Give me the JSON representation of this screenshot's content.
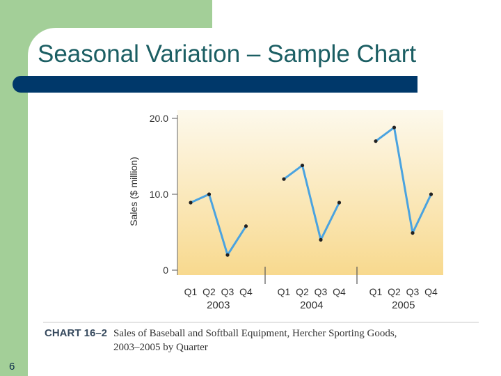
{
  "slide": {
    "title": "Seasonal Variation – Sample Chart",
    "number": "6",
    "colors": {
      "green": "#a3cf98",
      "navy": "#00386a",
      "title": "#1b5e63",
      "line": "#4aa3e0",
      "plot_top": "#fdf9ec",
      "plot_bottom": "#f8d98e"
    }
  },
  "chart_data": {
    "type": "line",
    "ylabel": "Sales ($ million)",
    "ylim": [
      0,
      20
    ],
    "y_ticks": [
      "20.0",
      "10.0",
      "0"
    ],
    "groups": [
      {
        "year": "2003",
        "quarters": [
          "Q1",
          "Q2",
          "Q3",
          "Q4"
        ],
        "values": [
          8.9,
          10.0,
          2.0,
          5.8
        ]
      },
      {
        "year": "2004",
        "quarters": [
          "Q1",
          "Q2",
          "Q3",
          "Q4"
        ],
        "values": [
          12.0,
          13.8,
          4.0,
          8.9
        ]
      },
      {
        "year": "2005",
        "quarters": [
          "Q1",
          "Q2",
          "Q3",
          "Q4"
        ],
        "values": [
          17.0,
          18.8,
          4.9,
          10.0
        ]
      }
    ],
    "caption": {
      "label": "CHART 16–2",
      "line1": "Sales of Baseball and Softball Equipment, Hercher Sporting Goods,",
      "line2": "2003–2005 by Quarter"
    }
  }
}
